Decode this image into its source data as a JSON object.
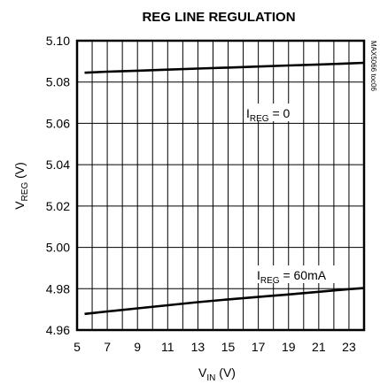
{
  "chart_data": {
    "type": "line",
    "title": "REG LINE REGULATION",
    "side_label": "MAX5066 toc06",
    "xlabel": {
      "main": "V",
      "sub": "IN",
      "unit": " (V)"
    },
    "ylabel": {
      "main": "V",
      "sub": "REG",
      "unit": " (V)"
    },
    "xlim": [
      5,
      24
    ],
    "ylim": [
      4.96,
      5.1
    ],
    "xticks": [
      5,
      7,
      9,
      11,
      13,
      15,
      17,
      19,
      21,
      23
    ],
    "yticks": [
      4.96,
      4.98,
      5.0,
      5.02,
      5.04,
      5.06,
      5.08,
      5.1
    ],
    "xtick_labels": [
      "5",
      "7",
      "9",
      "11",
      "13",
      "15",
      "17",
      "19",
      "21",
      "23"
    ],
    "ytick_labels": [
      "4.96",
      "4.98",
      "5.00",
      "5.02",
      "5.04",
      "5.06",
      "5.08",
      "5.10"
    ],
    "grid": true,
    "series": [
      {
        "label": {
          "main": "I",
          "sub": "REG",
          "rest": " = 0"
        },
        "x": [
          5.5,
          7,
          9,
          11,
          13,
          15,
          17,
          19,
          21,
          23,
          24
        ],
        "y": [
          5.0845,
          5.085,
          5.0855,
          5.086,
          5.0865,
          5.087,
          5.0875,
          5.088,
          5.0885,
          5.089,
          5.0893
        ]
      },
      {
        "label": {
          "main": "I",
          "sub": "REG",
          "rest": " = 60mA"
        },
        "x": [
          5.5,
          7,
          9,
          11,
          13,
          15,
          17,
          19,
          21,
          23,
          24
        ],
        "y": [
          4.9678,
          4.969,
          4.9705,
          4.972,
          4.9735,
          4.9748,
          4.976,
          4.9772,
          4.9785,
          4.9798,
          4.9803
        ]
      }
    ]
  }
}
